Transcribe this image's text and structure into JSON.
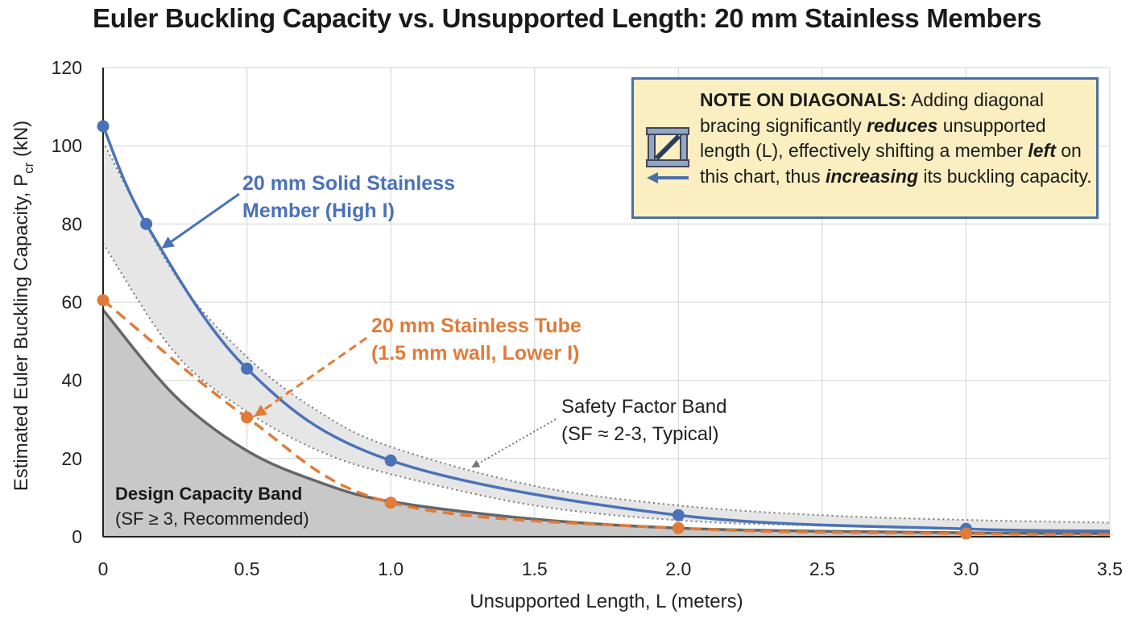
{
  "title": "Euler Buckling Capacity vs. Unsupported Length: 20 mm Stainless Members",
  "note": {
    "heading": "NOTE ON DIAGONALS:",
    "t1": " Adding diagonal bracing significantly ",
    "em1": "reduces",
    "t2": " unsupported length (L), effectively shifting a member ",
    "em2": "left",
    "t3": " on this chart, thus ",
    "em3": "increasing",
    "t4": " its buckling capacity.",
    "icon": "diagonal-bracing-icon"
  },
  "annotations": {
    "solid_label_1": "20 mm Solid Stainless",
    "solid_label_2": "Member (High I)",
    "tube_label_1": "20 mm Stainless Tube",
    "tube_label_2": "(1.5 mm wall, Lower I)",
    "sf_band_1": "Safety Factor Band",
    "sf_band_2": "(SF ≈ 2-3, Typical)",
    "design_band_1": "Design Capacity Band",
    "design_band_2": "(SF ≥ 3, Recommended)"
  },
  "chart_data": {
    "type": "line",
    "title": "Euler Buckling Capacity vs. Unsupported Length: 20 mm Stainless Members",
    "xlabel": "Unsupported Length, L (meters)",
    "ylabel_main": "Estimated Euler Buckling Capacity, P",
    "ylabel_sub": "cr",
    "ylabel_unit": " (kN)",
    "xlim": [
      0,
      3.5
    ],
    "ylim": [
      0,
      120
    ],
    "xticks": [
      "0",
      "0.5",
      "1.0",
      "1.5",
      "2.0",
      "2.5",
      "3.0",
      "3.5"
    ],
    "xtick_values": [
      0,
      0.5,
      1.0,
      1.5,
      2.0,
      2.5,
      3.0,
      3.5
    ],
    "yticks": [
      "0",
      "20",
      "40",
      "60",
      "80",
      "100",
      "120"
    ],
    "ytick_values": [
      0,
      20,
      40,
      60,
      80,
      100,
      120
    ],
    "grid": true,
    "series": [
      {
        "name": "20 mm Solid Stainless Member (High I)",
        "color": "#4a72b8",
        "style": "solid",
        "x": [
          0,
          0.15,
          0.5,
          1.0,
          2.0,
          3.0
        ],
        "y": [
          105,
          80,
          43,
          19.5,
          5.5,
          2
        ]
      },
      {
        "name": "20 mm Stainless Tube (1.5 mm wall, Lower I)",
        "color": "#e07b39",
        "style": "dashed",
        "x": [
          0,
          0.5,
          1.0,
          2.0,
          3.0
        ],
        "y": [
          60.5,
          30.5,
          8.7,
          2.2,
          0.8
        ]
      }
    ],
    "bands": [
      {
        "name": "Safety Factor Band",
        "color": "#e6e6e6",
        "upper": {
          "x": [
            0,
            0.25,
            0.5,
            0.75,
            1.0,
            1.5,
            2.0,
            2.5,
            3.0,
            3.5
          ],
          "y": [
            101,
            67,
            46,
            32,
            23,
            13,
            8,
            5.5,
            4.3,
            3.6
          ]
        },
        "lower": {
          "x": [
            0,
            0.25,
            0.5,
            0.75,
            1.0,
            1.5,
            2.0,
            2.5,
            3.0,
            3.5
          ],
          "y": [
            75,
            47,
            32,
            22,
            16,
            8,
            4.2,
            2.8,
            2,
            1.6
          ]
        }
      },
      {
        "name": "Design Capacity Band",
        "color": "#c8c8c8",
        "upper": {
          "x": [
            0,
            0.25,
            0.5,
            0.75,
            1.0,
            1.5,
            2.0,
            2.5,
            3.0,
            3.5
          ],
          "y": [
            58,
            36,
            22,
            14,
            9,
            4.5,
            2.2,
            1.4,
            1,
            0.8
          ]
        }
      }
    ]
  }
}
